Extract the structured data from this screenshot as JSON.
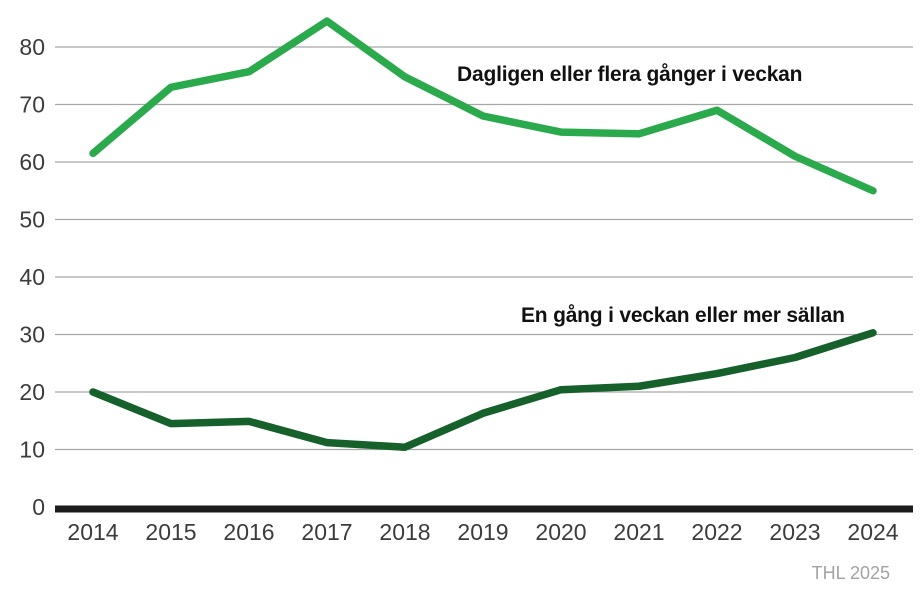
{
  "chart_data": {
    "type": "line",
    "x": [
      2014,
      2015,
      2016,
      2017,
      2018,
      2019,
      2020,
      2021,
      2022,
      2023,
      2024
    ],
    "series": [
      {
        "name": "Dagligen eller flera gånger i veckan",
        "color": "#2BAA4D",
        "values": [
          61.5,
          73,
          75.7,
          84.5,
          74.8,
          68,
          65.2,
          64.9,
          69,
          61,
          55
        ]
      },
      {
        "name": "En gång i veckan eller mer sällan",
        "color": "#16602C",
        "values": [
          20,
          14.5,
          14.9,
          11.2,
          10.4,
          16.3,
          20.4,
          21,
          23.2,
          26,
          30.3
        ]
      }
    ],
    "yticks": [
      0,
      10,
      20,
      30,
      40,
      50,
      60,
      70,
      80
    ],
    "ylim": [
      0,
      87
    ],
    "grid": true,
    "legend_position": "inline-annotations",
    "gridline_color": "#A7A7A7",
    "axis_color": "#1C1C1C",
    "tick_label_color": "#3C3C3C",
    "annotation_color": "#111111",
    "source": "THL 2025",
    "source_color": "#A3A3A3"
  }
}
